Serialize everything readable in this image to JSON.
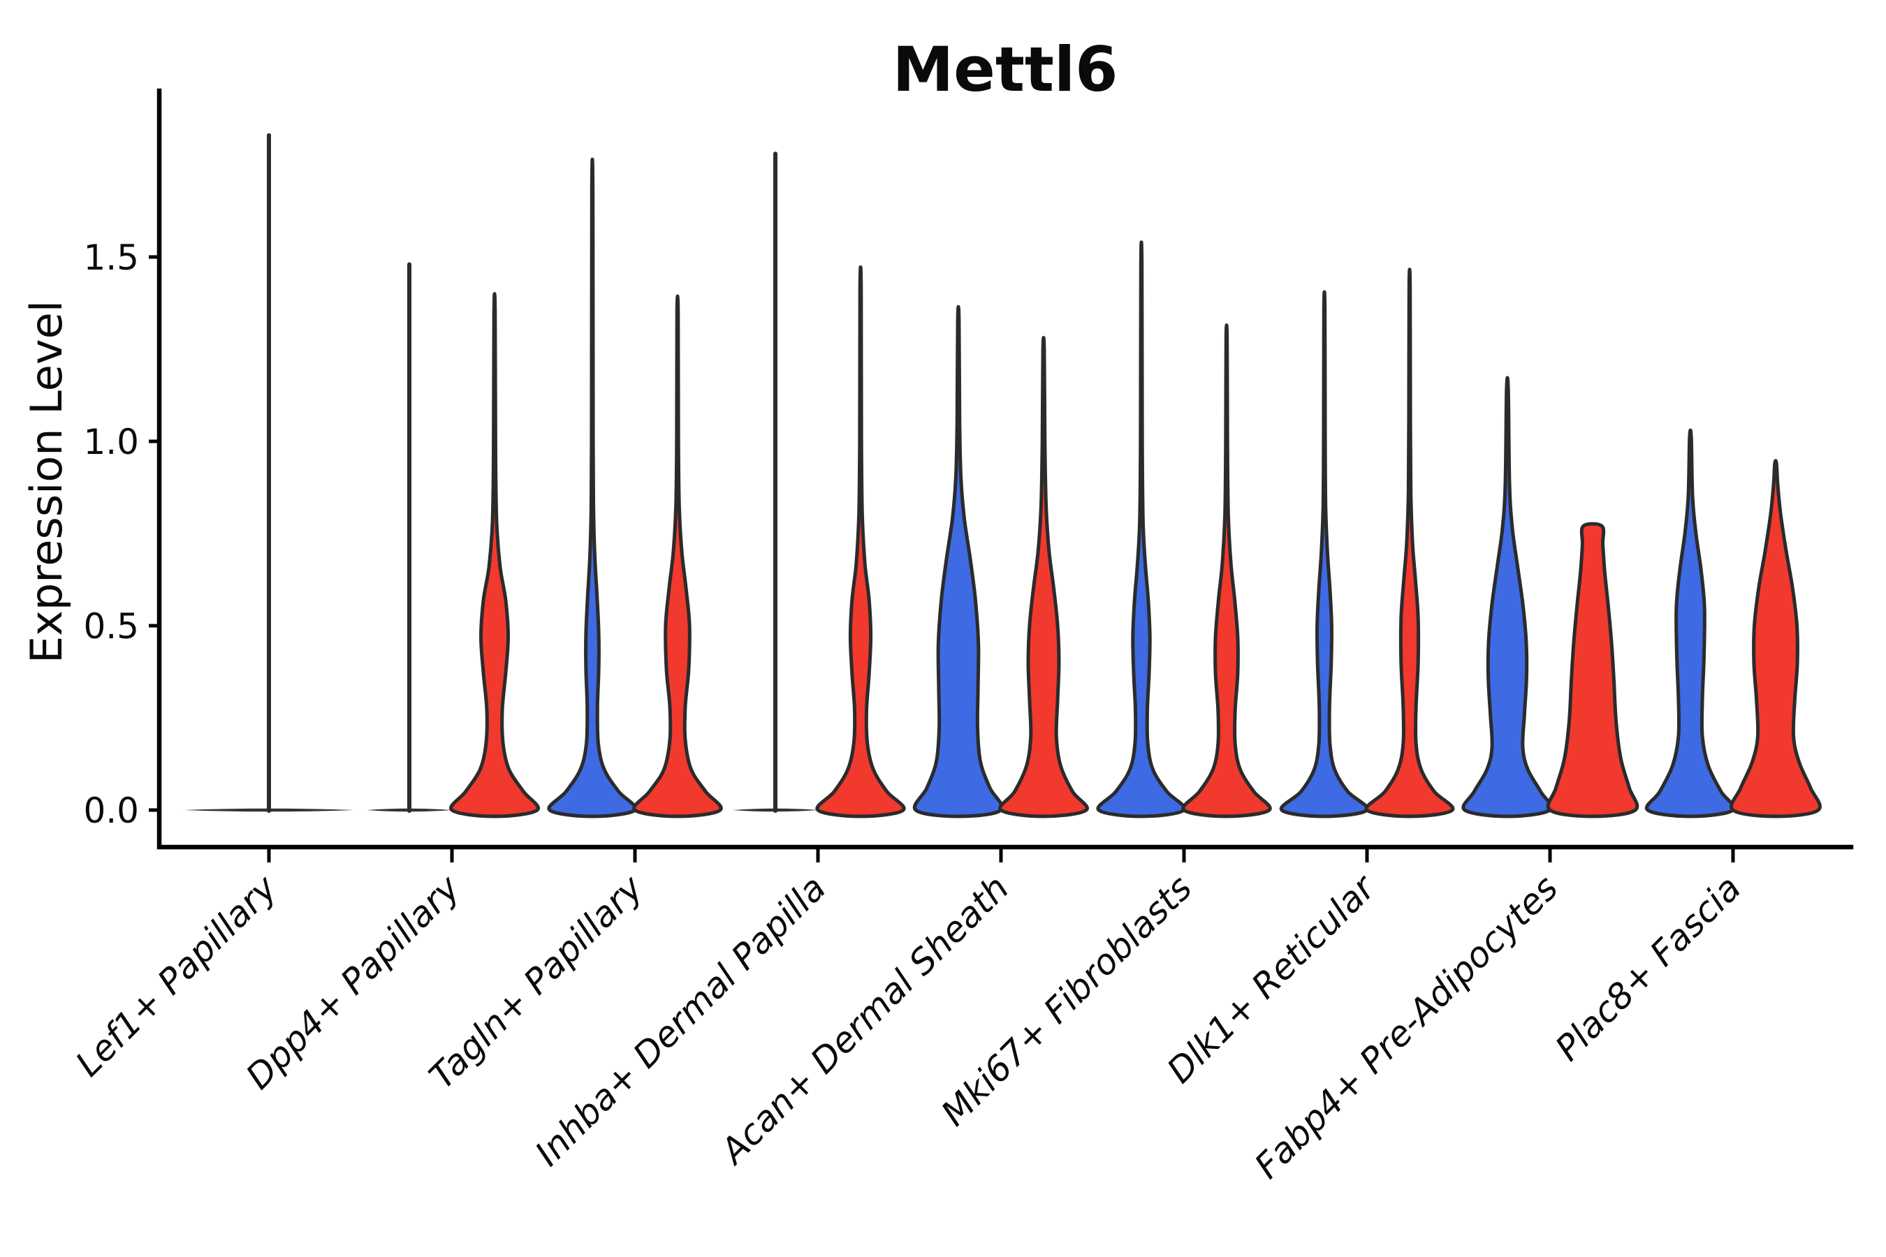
{
  "header": {
    "title": "Mettl6"
  },
  "y_axis": {
    "label": "Expression Level",
    "tick_labels": [
      "0.0",
      "0.5",
      "1.0",
      "1.5"
    ]
  },
  "x_axis": {
    "categories": [
      "Lef1+ Papillary",
      "Dpp4+ Papillary",
      "Tagln+ Papillary",
      "Inhba+ Dermal Papilla",
      "Acan+ Dermal Sheath",
      "Mki67+ Fibroblasts",
      "Dlk1+ Reticular",
      "Fabp4+ Pre-Adipocytes",
      "Plac8+ Fascia"
    ]
  },
  "palette": {
    "blue": "#3E6AE3",
    "red": "#F2392E",
    "outline": "#2b2b2b",
    "text": "#0a0a0a"
  },
  "chart_data": {
    "type": "violin",
    "title": "Mettl6",
    "xlabel": "",
    "ylabel": "Expression Level",
    "ylim": [
      -0.09,
      1.95
    ],
    "yticks": [
      0.0,
      0.5,
      1.0,
      1.5
    ],
    "grid": false,
    "legend": "none",
    "categories": [
      "Lef1+ Papillary",
      "Dpp4+ Papillary",
      "Tagln+ Papillary",
      "Inhba+ Dermal Papilla",
      "Acan+ Dermal Sheath",
      "Mki67+ Fibroblasts",
      "Dlk1+ Reticular",
      "Fabp4+ Pre-Adipocytes",
      "Plac8+ Fascia"
    ],
    "groups": [
      {
        "name": "blue",
        "color": "#3E6AE3"
      },
      {
        "name": "red",
        "color": "#F2392E"
      }
    ],
    "violins": [
      {
        "category_index": 0,
        "slot": "center",
        "group": "all",
        "max": 1.83,
        "collapsed": true,
        "span_slots": 2
      },
      {
        "category_index": 1,
        "slot": "left",
        "group": "blue",
        "max": 1.48,
        "collapsed": true
      },
      {
        "category_index": 1,
        "slot": "right",
        "group": "red",
        "max": 1.35,
        "profile": [
          [
            0,
            1
          ],
          [
            0.05,
            0.68
          ],
          [
            0.11,
            0.34
          ],
          [
            0.18,
            0.2
          ],
          [
            0.27,
            0.18
          ],
          [
            0.37,
            0.26
          ],
          [
            0.47,
            0.32
          ],
          [
            0.57,
            0.26
          ],
          [
            0.66,
            0.13
          ],
          [
            0.78,
            0.05
          ],
          [
            0.95,
            0.025
          ],
          [
            1.35,
            0.013
          ]
        ]
      },
      {
        "category_index": 2,
        "slot": "left",
        "group": "blue",
        "max": 1.68,
        "profile": [
          [
            0,
            1
          ],
          [
            0.05,
            0.62
          ],
          [
            0.11,
            0.28
          ],
          [
            0.18,
            0.14
          ],
          [
            0.28,
            0.12
          ],
          [
            0.38,
            0.15
          ],
          [
            0.48,
            0.15
          ],
          [
            0.58,
            0.11
          ],
          [
            0.68,
            0.06
          ],
          [
            0.8,
            0.03
          ],
          [
            1.0,
            0.018
          ],
          [
            1.68,
            0.012
          ]
        ]
      },
      {
        "category_index": 2,
        "slot": "right",
        "group": "red",
        "max": 1.35,
        "profile": [
          [
            0,
            1
          ],
          [
            0.05,
            0.66
          ],
          [
            0.11,
            0.32
          ],
          [
            0.19,
            0.18
          ],
          [
            0.28,
            0.18
          ],
          [
            0.38,
            0.26
          ],
          [
            0.5,
            0.28
          ],
          [
            0.6,
            0.2
          ],
          [
            0.7,
            0.1
          ],
          [
            0.82,
            0.04
          ],
          [
            1.0,
            0.02
          ],
          [
            1.35,
            0.013
          ]
        ]
      },
      {
        "category_index": 3,
        "slot": "left",
        "group": "blue",
        "max": 1.78,
        "collapsed": true
      },
      {
        "category_index": 3,
        "slot": "right",
        "group": "red",
        "max": 1.42,
        "profile": [
          [
            0,
            1
          ],
          [
            0.05,
            0.62
          ],
          [
            0.11,
            0.3
          ],
          [
            0.18,
            0.16
          ],
          [
            0.27,
            0.14
          ],
          [
            0.37,
            0.2
          ],
          [
            0.47,
            0.24
          ],
          [
            0.57,
            0.2
          ],
          [
            0.67,
            0.1
          ],
          [
            0.8,
            0.04
          ],
          [
            1.0,
            0.02
          ],
          [
            1.42,
            0.013
          ]
        ]
      },
      {
        "category_index": 4,
        "slot": "left",
        "group": "blue",
        "max": 1.33,
        "profile": [
          [
            0,
            1
          ],
          [
            0.06,
            0.74
          ],
          [
            0.13,
            0.52
          ],
          [
            0.22,
            0.45
          ],
          [
            0.33,
            0.46
          ],
          [
            0.45,
            0.47
          ],
          [
            0.57,
            0.4
          ],
          [
            0.68,
            0.28
          ],
          [
            0.79,
            0.14
          ],
          [
            0.9,
            0.06
          ],
          [
            1.05,
            0.03
          ],
          [
            1.33,
            0.015
          ]
        ]
      },
      {
        "category_index": 4,
        "slot": "right",
        "group": "red",
        "max": 1.25,
        "profile": [
          [
            0,
            1
          ],
          [
            0.05,
            0.68
          ],
          [
            0.12,
            0.4
          ],
          [
            0.2,
            0.3
          ],
          [
            0.3,
            0.33
          ],
          [
            0.4,
            0.36
          ],
          [
            0.5,
            0.33
          ],
          [
            0.6,
            0.24
          ],
          [
            0.7,
            0.13
          ],
          [
            0.82,
            0.06
          ],
          [
            1.0,
            0.03
          ],
          [
            1.25,
            0.015
          ]
        ]
      },
      {
        "category_index": 5,
        "slot": "left",
        "group": "blue",
        "max": 1.48,
        "profile": [
          [
            0,
            1
          ],
          [
            0.05,
            0.6
          ],
          [
            0.11,
            0.27
          ],
          [
            0.18,
            0.15
          ],
          [
            0.27,
            0.14
          ],
          [
            0.37,
            0.18
          ],
          [
            0.47,
            0.2
          ],
          [
            0.57,
            0.16
          ],
          [
            0.67,
            0.09
          ],
          [
            0.78,
            0.04
          ],
          [
            1.0,
            0.02
          ],
          [
            1.48,
            0.012
          ]
        ]
      },
      {
        "category_index": 5,
        "slot": "right",
        "group": "red",
        "max": 1.28,
        "profile": [
          [
            0,
            1
          ],
          [
            0.05,
            0.64
          ],
          [
            0.11,
            0.32
          ],
          [
            0.18,
            0.2
          ],
          [
            0.27,
            0.2
          ],
          [
            0.37,
            0.26
          ],
          [
            0.47,
            0.26
          ],
          [
            0.57,
            0.19
          ],
          [
            0.67,
            0.1
          ],
          [
            0.8,
            0.04
          ],
          [
            1.0,
            0.02
          ],
          [
            1.28,
            0.012
          ]
        ]
      },
      {
        "category_index": 6,
        "slot": "left",
        "group": "blue",
        "max": 1.36,
        "profile": [
          [
            0,
            1
          ],
          [
            0.05,
            0.55
          ],
          [
            0.11,
            0.24
          ],
          [
            0.18,
            0.13
          ],
          [
            0.28,
            0.12
          ],
          [
            0.4,
            0.16
          ],
          [
            0.5,
            0.17
          ],
          [
            0.6,
            0.13
          ],
          [
            0.7,
            0.07
          ],
          [
            0.82,
            0.03
          ],
          [
            1.0,
            0.018
          ],
          [
            1.36,
            0.012
          ]
        ]
      },
      {
        "category_index": 6,
        "slot": "right",
        "group": "red",
        "max": 1.42,
        "profile": [
          [
            0,
            1
          ],
          [
            0.05,
            0.58
          ],
          [
            0.11,
            0.27
          ],
          [
            0.18,
            0.15
          ],
          [
            0.28,
            0.15
          ],
          [
            0.4,
            0.2
          ],
          [
            0.52,
            0.2
          ],
          [
            0.62,
            0.14
          ],
          [
            0.72,
            0.07
          ],
          [
            0.85,
            0.03
          ],
          [
            1.05,
            0.018
          ],
          [
            1.42,
            0.012
          ]
        ]
      },
      {
        "category_index": 7,
        "slot": "left",
        "group": "blue",
        "max": 1.14,
        "profile": [
          [
            0,
            1
          ],
          [
            0.05,
            0.78
          ],
          [
            0.11,
            0.48
          ],
          [
            0.17,
            0.36
          ],
          [
            0.26,
            0.4
          ],
          [
            0.36,
            0.45
          ],
          [
            0.46,
            0.44
          ],
          [
            0.56,
            0.36
          ],
          [
            0.66,
            0.24
          ],
          [
            0.76,
            0.12
          ],
          [
            0.88,
            0.05
          ],
          [
            1.14,
            0.02
          ]
        ]
      },
      {
        "category_index": 7,
        "slot": "right",
        "group": "red",
        "max": 0.77,
        "flat_top": true,
        "profile": [
          [
            0,
            1
          ],
          [
            0.06,
            0.86
          ],
          [
            0.14,
            0.66
          ],
          [
            0.24,
            0.55
          ],
          [
            0.35,
            0.5
          ],
          [
            0.46,
            0.44
          ],
          [
            0.56,
            0.36
          ],
          [
            0.65,
            0.28
          ],
          [
            0.72,
            0.24
          ],
          [
            0.77,
            0.22
          ]
        ]
      },
      {
        "category_index": 8,
        "slot": "left",
        "group": "blue",
        "max": 1.01,
        "profile": [
          [
            0,
            1
          ],
          [
            0.05,
            0.72
          ],
          [
            0.12,
            0.42
          ],
          [
            0.2,
            0.28
          ],
          [
            0.3,
            0.28
          ],
          [
            0.42,
            0.32
          ],
          [
            0.55,
            0.33
          ],
          [
            0.65,
            0.25
          ],
          [
            0.75,
            0.13
          ],
          [
            0.85,
            0.05
          ],
          [
            1.01,
            0.02
          ]
        ]
      },
      {
        "category_index": 8,
        "slot": "right",
        "group": "red",
        "max": 0.94,
        "profile": [
          [
            0,
            1
          ],
          [
            0.06,
            0.82
          ],
          [
            0.13,
            0.55
          ],
          [
            0.2,
            0.42
          ],
          [
            0.3,
            0.45
          ],
          [
            0.4,
            0.51
          ],
          [
            0.5,
            0.5
          ],
          [
            0.6,
            0.4
          ],
          [
            0.7,
            0.25
          ],
          [
            0.8,
            0.12
          ],
          [
            0.88,
            0.05
          ],
          [
            0.94,
            0.02
          ]
        ]
      }
    ]
  }
}
